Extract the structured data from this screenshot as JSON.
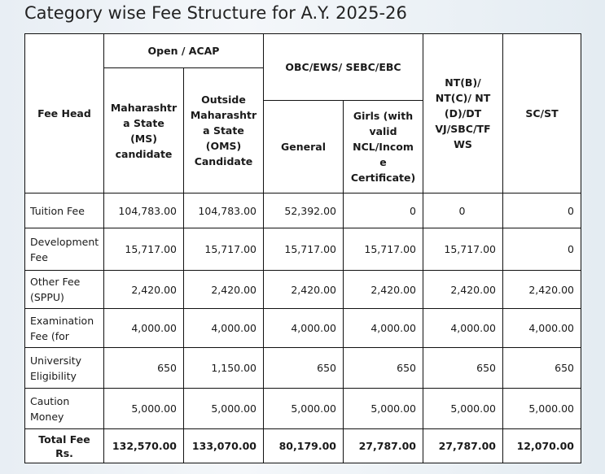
{
  "title": "Category wise Fee Structure for A.Y. 2025-26",
  "headers": {
    "fee_head": "Fee Head",
    "open_acap": "Open / ACAP",
    "ms": "Maharashtr a State (MS) candidate",
    "oms": "Outside Maharashtr a State (OMS) Candidate",
    "obc_group": "OBC/EWS/ SEBC/EBC",
    "general": "General",
    "girls": "Girls (with valid NCL/Incom e Certificate)",
    "nt": "NT(B)/ NT(C)/ NT (D)/DT VJ/SBC/TF WS",
    "sc_st": "SC/ST"
  },
  "rows": [
    {
      "label": "Tuition Fee",
      "values": [
        "104,783.00",
        "104,783.00",
        "52,392.00",
        "0",
        "0",
        "0"
      ]
    },
    {
      "label": "Development Fee",
      "values": [
        "15,717.00",
        "15,717.00",
        "15,717.00",
        "15,717.00",
        "15,717.00",
        "0"
      ]
    },
    {
      "label": "Other Fee (SPPU)",
      "values": [
        "2,420.00",
        "2,420.00",
        "2,420.00",
        "2,420.00",
        "2,420.00",
        "2,420.00"
      ]
    },
    {
      "label": "Examination Fee (for",
      "values": [
        "4,000.00",
        "4,000.00",
        "4,000.00",
        "4,000.00",
        "4,000.00",
        "4,000.00"
      ]
    },
    {
      "label": "University Eligibility",
      "values": [
        "650",
        "1,150.00",
        "650",
        "650",
        "650",
        "650"
      ]
    },
    {
      "label": "Caution Money",
      "values": [
        "5,000.00",
        "5,000.00",
        "5,000.00",
        "5,000.00",
        "5,000.00",
        "5,000.00"
      ]
    }
  ],
  "total": {
    "label": "Total Fee Rs.",
    "values": [
      "132,570.00",
      "133,070.00",
      "80,179.00",
      "27,787.00",
      "27,787.00",
      "12,070.00"
    ]
  }
}
